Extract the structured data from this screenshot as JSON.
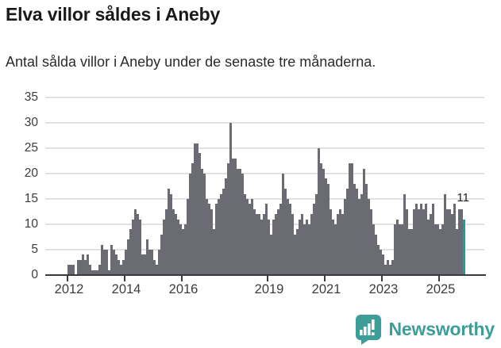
{
  "header": {
    "title": "Elva villor såldes i Aneby",
    "subtitle": "Antal sålda villor i Aneby under de senaste tre månaderna."
  },
  "chart_data": {
    "type": "bar",
    "title": "Elva villor såldes i Aneby",
    "subtitle": "Antal sålda villor i Aneby under de senaste tre månaderna.",
    "frequency": "monthly",
    "x_start": "2012-01",
    "x_end": "2025-11",
    "values": [
      2,
      2,
      2,
      0,
      3,
      3,
      4,
      3,
      4,
      2,
      1,
      1,
      1,
      2,
      6,
      5,
      5,
      1,
      6,
      5,
      4,
      3,
      2,
      3,
      5,
      7,
      9,
      11,
      13,
      12,
      11,
      4,
      4,
      7,
      5,
      5,
      3,
      2,
      5,
      8,
      11,
      13,
      17,
      16,
      13,
      12,
      11,
      10,
      9,
      10,
      15,
      20,
      22,
      26,
      26,
      24,
      21,
      20,
      15,
      14,
      13,
      9,
      14,
      15,
      16,
      17,
      19,
      22,
      30,
      23,
      23,
      21,
      21,
      20,
      16,
      15,
      14,
      15,
      13,
      12,
      12,
      11,
      12,
      14,
      11,
      8,
      11,
      12,
      13,
      14,
      20,
      17,
      15,
      14,
      12,
      8,
      9,
      11,
      12,
      10,
      11,
      10,
      12,
      14,
      16,
      25,
      22,
      21,
      19,
      18,
      13,
      11,
      10,
      12,
      13,
      12,
      15,
      17,
      22,
      22,
      18,
      17,
      15,
      16,
      21,
      18,
      15,
      13,
      10,
      8,
      6,
      5,
      4,
      2,
      3,
      2,
      3,
      10,
      11,
      10,
      10,
      16,
      13,
      9,
      9,
      13,
      14,
      13,
      14,
      13,
      14,
      11,
      12,
      14,
      10,
      10,
      9,
      10,
      16,
      13,
      13,
      12,
      14,
      9,
      13,
      13,
      11
    ],
    "highlight": {
      "index": 166,
      "label": "11"
    },
    "colors": {
      "bar": "#6b6b73",
      "highlight": "#16a09c",
      "gridline": "#e2e2e2",
      "axis": "#3a3a3a"
    },
    "y_ticks": [
      0,
      5,
      10,
      15,
      20,
      25,
      30,
      35
    ],
    "ylim": [
      0,
      35
    ],
    "x_ticks": [
      {
        "label": "2012",
        "month_index": 0
      },
      {
        "label": "2014",
        "month_index": 24
      },
      {
        "label": "2016",
        "month_index": 48
      },
      {
        "label": "2019",
        "month_index": 84
      },
      {
        "label": "2021",
        "month_index": 108
      },
      {
        "label": "2023",
        "month_index": 132
      },
      {
        "label": "2025",
        "month_index": 156
      }
    ],
    "grid": "horizontal",
    "legend": "none"
  },
  "footer": {
    "brand": "Newsworthy",
    "brand_color": "#3d9e98",
    "logo_icon": "speech-bubble-bar-chart-icon"
  }
}
